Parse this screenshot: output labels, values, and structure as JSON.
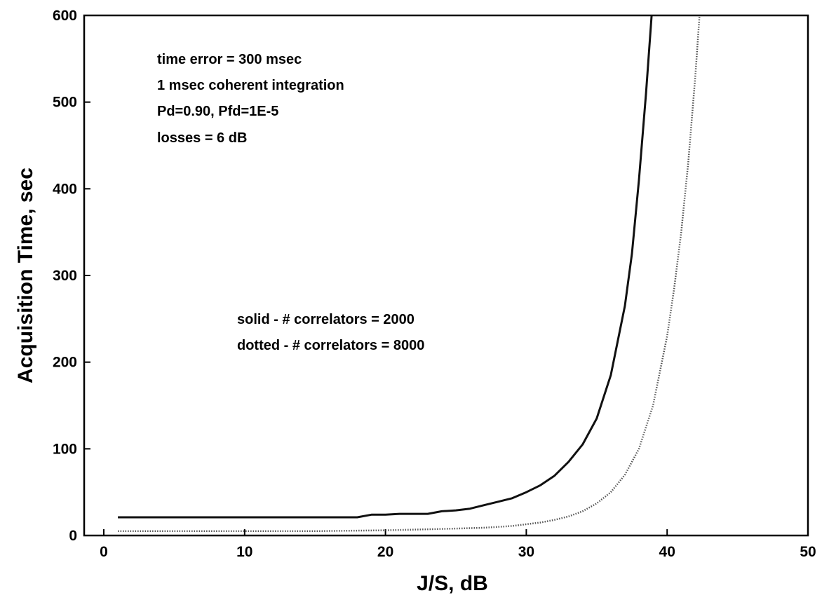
{
  "chart_data": {
    "type": "line",
    "title": "",
    "xlabel": "J/S, dB",
    "ylabel": "Acquisition Time, sec",
    "xlim": [
      0,
      50
    ],
    "ylim": [
      0,
      600
    ],
    "x_ticks": [
      "0",
      "10",
      "20",
      "30",
      "40",
      "50"
    ],
    "y_ticks": [
      "0",
      "100",
      "200",
      "300",
      "400",
      "500",
      "600"
    ],
    "grid": false,
    "annotations": [
      "time error = 300 msec",
      "1 msec coherent integration",
      "Pd=0.90, Pfd=1E-5",
      "losses = 6 dB"
    ],
    "legend_notes": [
      "solid - # correlators = 2000",
      "dotted - # correlators = 8000"
    ],
    "series": [
      {
        "style": "solid",
        "color": "#111111",
        "x": [
          1,
          5,
          10,
          15,
          18,
          19,
          20,
          21,
          22,
          23,
          24,
          25,
          26,
          27,
          28,
          29,
          30,
          31,
          32,
          33,
          34,
          35,
          36,
          37,
          37.5,
          38,
          38.5,
          38.9
        ],
        "y": [
          21,
          21,
          21,
          21,
          21,
          24,
          24,
          25,
          25,
          25,
          28,
          29,
          31,
          35,
          39,
          43,
          50,
          58,
          69,
          85,
          105,
          135,
          185,
          265,
          325,
          410,
          510,
          600
        ]
      },
      {
        "style": "dotted",
        "color": "#555555",
        "x": [
          1,
          5,
          10,
          15,
          20,
          25,
          27,
          29,
          30,
          31,
          32,
          33,
          34,
          35,
          36,
          37,
          38,
          39,
          40,
          40.5,
          41,
          41.5,
          42,
          42.3
        ],
        "y": [
          5,
          5,
          5,
          5,
          6,
          8,
          9,
          11,
          13,
          15,
          18,
          22,
          28,
          37,
          50,
          70,
          100,
          150,
          230,
          285,
          350,
          430,
          530,
          600
        ]
      }
    ]
  }
}
